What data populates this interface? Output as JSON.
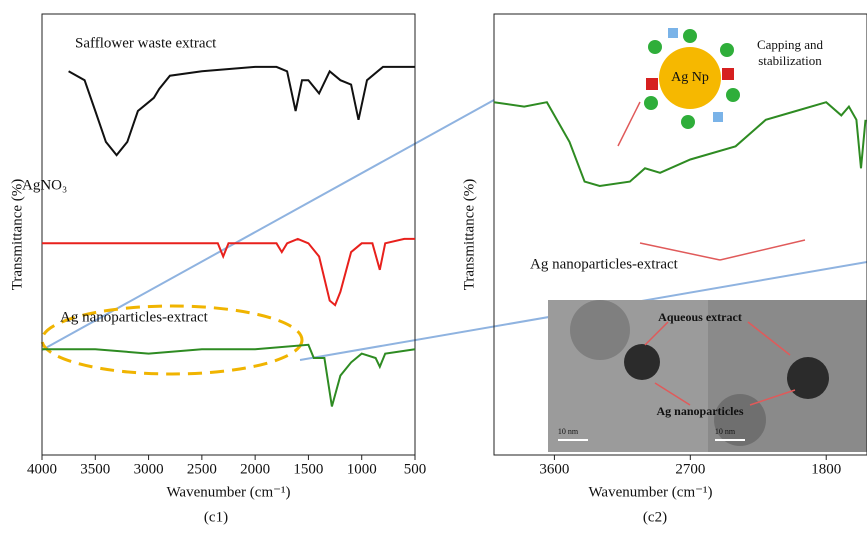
{
  "chart_data": [
    {
      "type": "line",
      "caption": "(c1)",
      "x_label": "Wavenumber (cm⁻¹)",
      "y_label": "Transmittance (%)",
      "xlim": [
        4000,
        500
      ],
      "ylim": [
        0,
        100
      ],
      "xticks": [
        4000,
        3500,
        3000,
        2500,
        2000,
        1500,
        1000,
        500
      ],
      "series": [
        {
          "name": "Safflower waste extract",
          "color": "#111111",
          "x": [
            3750,
            3600,
            3500,
            3400,
            3300,
            3200,
            3100,
            3000,
            2950,
            2900,
            2800,
            2500,
            2000,
            1800,
            1700,
            1620,
            1560,
            1500,
            1400,
            1300,
            1200,
            1100,
            1030,
            950,
            800,
            600,
            500
          ],
          "values": [
            87,
            85,
            78,
            71,
            68,
            71,
            78,
            80,
            81,
            83,
            86,
            87,
            88,
            88,
            87,
            78,
            85,
            85,
            82,
            87,
            85,
            84,
            76,
            85,
            88,
            88,
            88
          ]
        },
        {
          "name": "AgNO₃",
          "color": "#e8201c",
          "x": [
            4000,
            3000,
            2350,
            2300,
            2250,
            1800,
            1750,
            1700,
            1600,
            1500,
            1400,
            1300,
            1250,
            1200,
            1100,
            1000,
            900,
            830,
            780,
            600,
            500
          ],
          "values": [
            48,
            48,
            48,
            45,
            48,
            48,
            46,
            48,
            49,
            48,
            45,
            35,
            34,
            37,
            46,
            48,
            48,
            42,
            48,
            49,
            49
          ]
        },
        {
          "name": "Ag nanoparticles-extract",
          "color": "#2e8b22",
          "x": [
            4000,
            3500,
            3000,
            2500,
            2000,
            1500,
            1450,
            1350,
            1280,
            1200,
            1100,
            1000,
            870,
            830,
            780,
            500
          ],
          "values": [
            24,
            24,
            23,
            24,
            24,
            25,
            22,
            22,
            11,
            18,
            21,
            23,
            22,
            20,
            23,
            24
          ]
        }
      ]
    },
    {
      "type": "line",
      "caption": "(c2)",
      "x_label": "Wavenumber (cm⁻¹)",
      "y_label": "Transmittance (%)",
      "xlim": [
        4000,
        1530
      ],
      "ylim": [
        0,
        100
      ],
      "xticks": [
        3600,
        2700,
        1800
      ],
      "annotations": [
        "Capping and stabilization",
        "Ag Np",
        "Aqueous extract",
        "Ag nanoparticles",
        "10 nm",
        "10 nm"
      ],
      "series": [
        {
          "name": "Ag nanoparticles-extract",
          "color": "#2e8b22",
          "x": [
            4000,
            3800,
            3650,
            3500,
            3400,
            3300,
            3100,
            3000,
            2900,
            2700,
            2400,
            2200,
            2000,
            1800,
            1700,
            1650,
            1600,
            1570,
            1540
          ],
          "values": [
            80,
            79,
            80,
            71,
            62,
            61,
            62,
            65,
            64,
            67,
            70,
            76,
            78,
            80,
            77,
            79,
            76,
            65,
            76
          ]
        }
      ]
    }
  ]
}
